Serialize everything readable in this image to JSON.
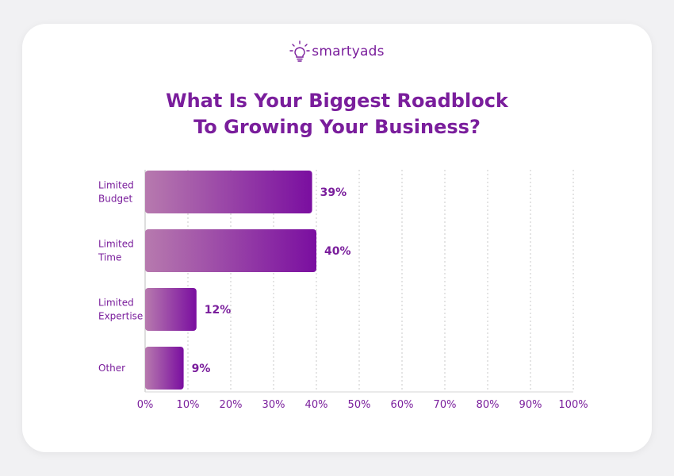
{
  "logo": {
    "text": "smartyads",
    "icon": "lightbulb-icon"
  },
  "chart_data": {
    "type": "bar",
    "orientation": "horizontal",
    "title_lines": [
      "What Is Your Biggest Roadblock",
      "To Growing Your Business?"
    ],
    "categories": [
      [
        "Limited",
        "Budget"
      ],
      [
        "Limited",
        "Time"
      ],
      [
        "Limited",
        "Expertise"
      ],
      [
        "Other"
      ]
    ],
    "values": [
      39,
      40,
      12,
      9
    ],
    "value_labels": [
      "39%",
      "40%",
      "12%",
      "9%"
    ],
    "xlim": [
      0,
      100
    ],
    "x_ticks": [
      "0%",
      "10%",
      "20%",
      "30%",
      "40%",
      "50%",
      "60%",
      "70%",
      "80%",
      "90%",
      "100%"
    ],
    "grid": "vertical dotted",
    "colors": {
      "bar_start": "#b77aae",
      "bar_end": "#7a0ea0",
      "text": "#7a1e9c",
      "grid": "#c8c8c8"
    }
  }
}
